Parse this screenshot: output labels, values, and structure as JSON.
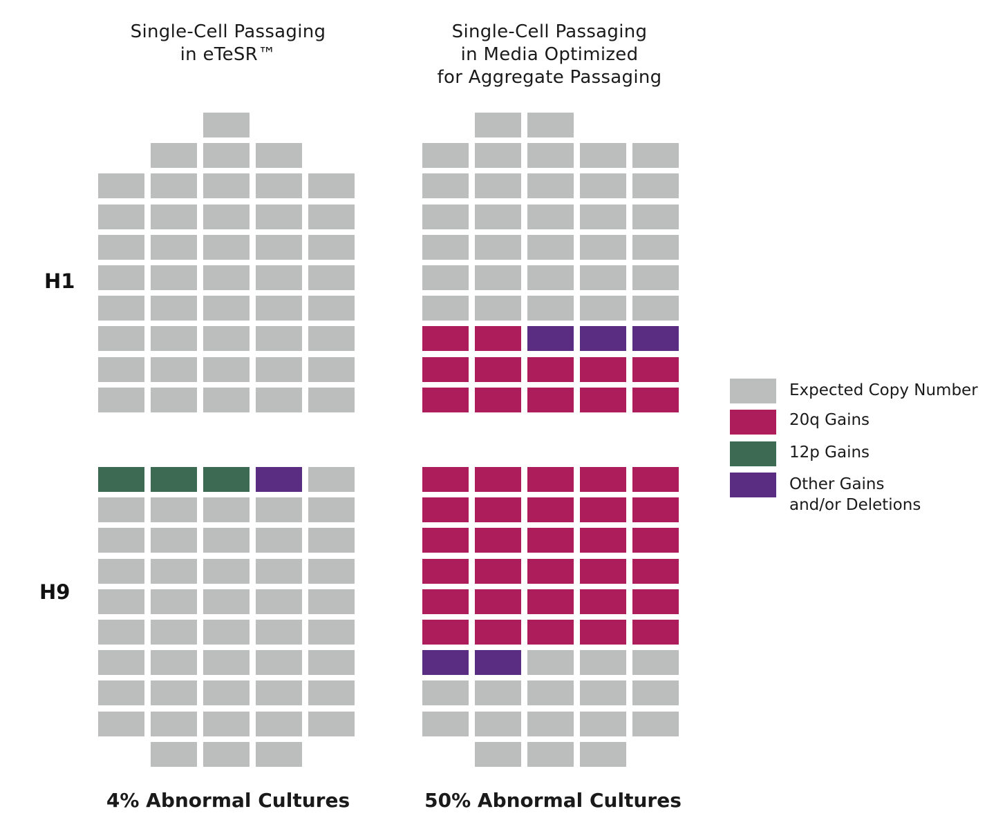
{
  "chart_data": {
    "type": "waffle",
    "columns": [
      {
        "title_lines": [
          "Single-Cell Passaging",
          "in eTeSR™"
        ],
        "summary": "4% Abnormal Cultures",
        "panels": [
          {
            "row_label": "H1",
            "rows": [
              [
                null,
                null,
                "E",
                null,
                null
              ],
              [
                null,
                "E",
                "E",
                "E",
                null
              ],
              [
                "E",
                "E",
                "E",
                "E",
                "E"
              ],
              [
                "E",
                "E",
                "E",
                "E",
                "E"
              ],
              [
                "E",
                "E",
                "E",
                "E",
                "E"
              ],
              [
                "E",
                "E",
                "E",
                "E",
                "E"
              ],
              [
                "E",
                "E",
                "E",
                "E",
                "E"
              ],
              [
                "E",
                "E",
                "E",
                "E",
                "E"
              ],
              [
                "E",
                "E",
                "E",
                "E",
                "E"
              ],
              [
                "E",
                "E",
                "E",
                "E",
                "E"
              ]
            ]
          },
          {
            "row_label": "H9",
            "rows": [
              [
                "12p",
                "12p",
                "12p",
                "O",
                "E"
              ],
              [
                "E",
                "E",
                "E",
                "E",
                "E"
              ],
              [
                "E",
                "E",
                "E",
                "E",
                "E"
              ],
              [
                "E",
                "E",
                "E",
                "E",
                "E"
              ],
              [
                "E",
                "E",
                "E",
                "E",
                "E"
              ],
              [
                "E",
                "E",
                "E",
                "E",
                "E"
              ],
              [
                "E",
                "E",
                "E",
                "E",
                "E"
              ],
              [
                "E",
                "E",
                "E",
                "E",
                "E"
              ],
              [
                "E",
                "E",
                "E",
                "E",
                "E"
              ],
              [
                null,
                "E",
                "E",
                "E",
                null
              ]
            ]
          }
        ]
      },
      {
        "title_lines": [
          "Single-Cell Passaging",
          "in Media Optimized",
          "for Aggregate Passaging"
        ],
        "summary": "50% Abnormal Cultures",
        "panels": [
          {
            "row_label": "H1",
            "rows": [
              [
                null,
                "E",
                "E",
                null,
                null
              ],
              [
                "E",
                "E",
                "E",
                "E",
                "E"
              ],
              [
                "E",
                "E",
                "E",
                "E",
                "E"
              ],
              [
                "E",
                "E",
                "E",
                "E",
                "E"
              ],
              [
                "E",
                "E",
                "E",
                "E",
                "E"
              ],
              [
                "E",
                "E",
                "E",
                "E",
                "E"
              ],
              [
                "E",
                "E",
                "E",
                "E",
                "E"
              ],
              [
                "20q",
                "20q",
                "O",
                "O",
                "O"
              ],
              [
                "20q",
                "20q",
                "20q",
                "20q",
                "20q"
              ],
              [
                "20q",
                "20q",
                "20q",
                "20q",
                "20q"
              ]
            ]
          },
          {
            "row_label": "H9",
            "rows": [
              [
                "20q",
                "20q",
                "20q",
                "20q",
                "20q"
              ],
              [
                "20q",
                "20q",
                "20q",
                "20q",
                "20q"
              ],
              [
                "20q",
                "20q",
                "20q",
                "20q",
                "20q"
              ],
              [
                "20q",
                "20q",
                "20q",
                "20q",
                "20q"
              ],
              [
                "20q",
                "20q",
                "20q",
                "20q",
                "20q"
              ],
              [
                "20q",
                "20q",
                "20q",
                "20q",
                "20q"
              ],
              [
                "O",
                "O",
                "E",
                "E",
                "E"
              ],
              [
                "E",
                "E",
                "E",
                "E",
                "E"
              ],
              [
                "E",
                "E",
                "E",
                "E",
                "E"
              ],
              [
                null,
                "E",
                "E",
                "E",
                null
              ]
            ]
          }
        ]
      }
    ],
    "legend": [
      {
        "key": "E",
        "label_lines": [
          "Expected Copy Number"
        ],
        "color": "#bcbebe"
      },
      {
        "key": "20q",
        "label_lines": [
          "20q Gains"
        ],
        "color": "#ad1c5b"
      },
      {
        "key": "12p",
        "label_lines": [
          "12p Gains"
        ],
        "color": "#3d6a52"
      },
      {
        "key": "O",
        "label_lines": [
          "Other Gains",
          "and/or Deletions"
        ],
        "color": "#5b2d82"
      }
    ],
    "legend_placement": "right"
  }
}
